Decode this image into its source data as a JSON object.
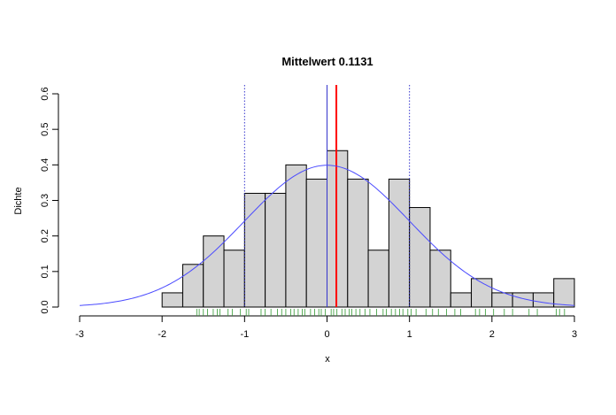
{
  "chart_data": {
    "type": "bar",
    "title": "Mittelwert  0.1131",
    "xlabel": "x",
    "ylabel": "Dichte",
    "xlim": [
      -3,
      3
    ],
    "ylim": [
      0,
      0.6
    ],
    "x_ticks": [
      "-3",
      "-2",
      "-1",
      "0",
      "1",
      "2",
      "3"
    ],
    "y_ticks": [
      "0.0",
      "0.1",
      "0.2",
      "0.3",
      "0.4",
      "0.5",
      "0.6"
    ],
    "grid": false,
    "histogram": {
      "bin_edges": [
        -2.0,
        -1.75,
        -1.5,
        -1.25,
        -1.0,
        -0.75,
        -0.5,
        -0.25,
        0.0,
        0.25,
        0.5,
        0.75,
        1.0,
        1.25,
        1.5,
        1.75,
        2.0,
        2.25,
        2.5,
        2.75,
        3.0
      ],
      "density": [
        0.04,
        0.12,
        0.2,
        0.16,
        0.32,
        0.32,
        0.4,
        0.36,
        0.44,
        0.36,
        0.16,
        0.36,
        0.28,
        0.16,
        0.04,
        0.08,
        0.04,
        0.04,
        0.04,
        0.08
      ],
      "fill_color": "#d3d3d3"
    },
    "density_curve": {
      "type": "normal",
      "mean": 0,
      "sd": 1,
      "color": "#4b4bff"
    },
    "vertical_lines": [
      {
        "x": 0,
        "color": "#3333cc",
        "style": "solid"
      },
      {
        "x": -1,
        "color": "#3333cc",
        "style": "dotted"
      },
      {
        "x": 1,
        "color": "#3333cc",
        "style": "dotted"
      },
      {
        "x": 0.1131,
        "color": "#ff0000",
        "style": "solid"
      }
    ],
    "rug": {
      "color": "#339933",
      "x": [
        -1.58,
        -1.55,
        -1.5,
        -1.45,
        -1.38,
        -1.33,
        -1.3,
        -1.2,
        -1.15,
        -1.05,
        -0.98,
        -0.95,
        -0.8,
        -0.75,
        -0.68,
        -0.6,
        -0.55,
        -0.5,
        -0.44,
        -0.4,
        -0.35,
        -0.3,
        -0.27,
        -0.2,
        -0.15,
        -0.1,
        -0.07,
        -0.02,
        0.05,
        0.08,
        0.12,
        0.18,
        0.22,
        0.27,
        0.3,
        0.35,
        0.4,
        0.46,
        0.52,
        0.6,
        0.68,
        0.72,
        0.78,
        0.83,
        0.88,
        0.92,
        0.98,
        1.02,
        1.08,
        1.2,
        1.28,
        1.35,
        1.45,
        1.55,
        1.62,
        1.8,
        1.85,
        1.92,
        2.02,
        2.15,
        2.25,
        2.45,
        2.55,
        2.78,
        2.82,
        2.88
      ]
    }
  }
}
